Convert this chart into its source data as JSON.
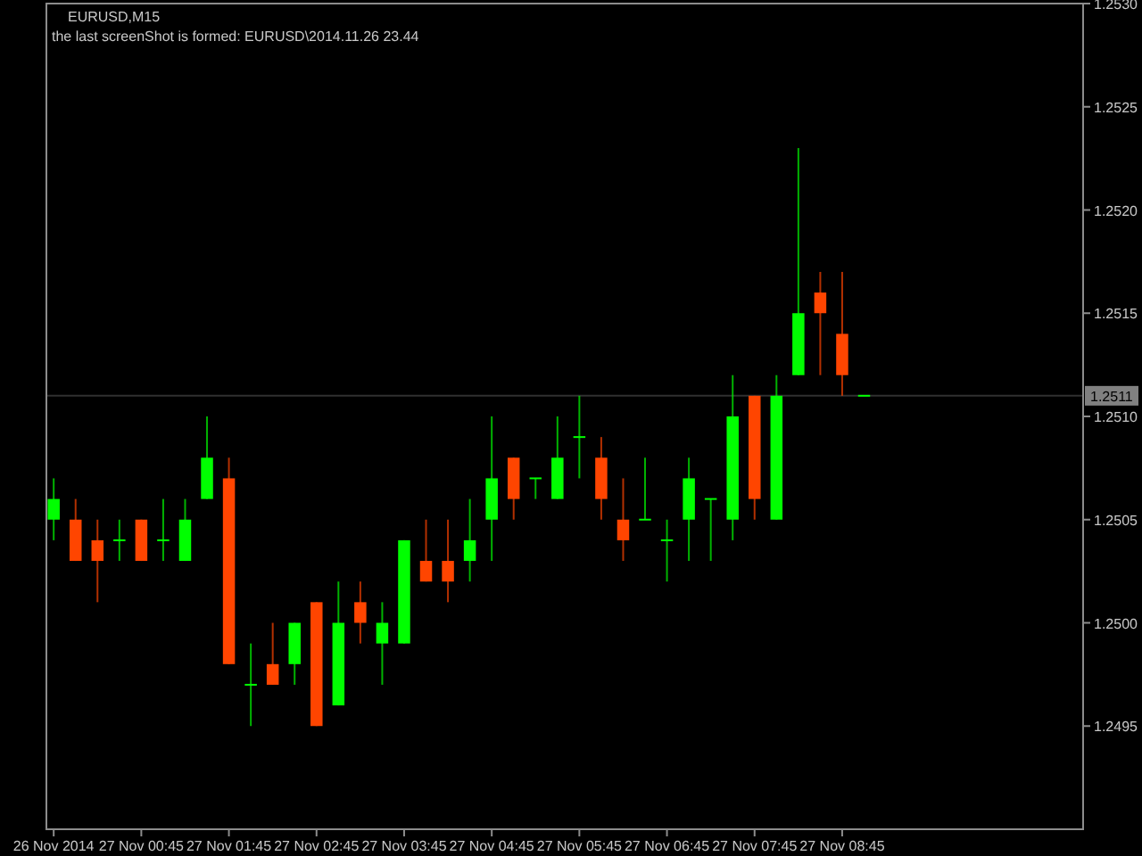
{
  "chart_data": {
    "type": "candlestick",
    "title": "EURUSD,M15",
    "subtitle": "the last screenShot is formed: EURUSD\\2014.11.26 23.44",
    "x": [
      "2014-11-26T23:45",
      "2014-11-27T00:00",
      "2014-11-27T00:15",
      "2014-11-27T00:30",
      "2014-11-27T00:45",
      "2014-11-27T01:00",
      "2014-11-27T01:15",
      "2014-11-27T01:30",
      "2014-11-27T01:45",
      "2014-11-27T02:00",
      "2014-11-27T02:15",
      "2014-11-27T02:30",
      "2014-11-27T02:45",
      "2014-11-27T03:00",
      "2014-11-27T03:15",
      "2014-11-27T03:30",
      "2014-11-27T03:45",
      "2014-11-27T04:00",
      "2014-11-27T04:15",
      "2014-11-27T04:30",
      "2014-11-27T04:45",
      "2014-11-27T05:00",
      "2014-11-27T05:15",
      "2014-11-27T05:30",
      "2014-11-27T05:45",
      "2014-11-27T06:00",
      "2014-11-27T06:15",
      "2014-11-27T06:30",
      "2014-11-27T06:45",
      "2014-11-27T07:00",
      "2014-11-27T07:15",
      "2014-11-27T07:30",
      "2014-11-27T07:45",
      "2014-11-27T08:00",
      "2014-11-27T08:15",
      "2014-11-27T08:30",
      "2014-11-27T08:45",
      "2014-11-27T09:00"
    ],
    "ohlc": [
      [
        1.2505,
        1.2507,
        1.2504,
        1.2506
      ],
      [
        1.2505,
        1.2506,
        1.2503,
        1.2503
      ],
      [
        1.2504,
        1.2505,
        1.2501,
        1.2503
      ],
      [
        1.2504,
        1.2505,
        1.2503,
        1.2504
      ],
      [
        1.2505,
        1.2505,
        1.2503,
        1.2503
      ],
      [
        1.2504,
        1.2506,
        1.2503,
        1.2504
      ],
      [
        1.2503,
        1.2506,
        1.2503,
        1.2505
      ],
      [
        1.2506,
        1.251,
        1.2506,
        1.2508
      ],
      [
        1.2507,
        1.2508,
        1.2498,
        1.2498
      ],
      [
        1.2497,
        1.2499,
        1.2495,
        1.2497
      ],
      [
        1.2498,
        1.25,
        1.2497,
        1.2497
      ],
      [
        1.2498,
        1.25,
        1.2497,
        1.25
      ],
      [
        1.2501,
        1.2501,
        1.2495,
        1.2495
      ],
      [
        1.2496,
        1.2502,
        1.2496,
        1.25
      ],
      [
        1.2501,
        1.2502,
        1.2499,
        1.25
      ],
      [
        1.2499,
        1.2501,
        1.2497,
        1.25
      ],
      [
        1.2499,
        1.2504,
        1.2499,
        1.2504
      ],
      [
        1.2503,
        1.2505,
        1.2502,
        1.2502
      ],
      [
        1.2503,
        1.2505,
        1.2501,
        1.2502
      ],
      [
        1.2503,
        1.2506,
        1.2502,
        1.2504
      ],
      [
        1.2505,
        1.251,
        1.2503,
        1.2507
      ],
      [
        1.2508,
        1.2508,
        1.2505,
        1.2506
      ],
      [
        1.2507,
        1.2507,
        1.2506,
        1.2507
      ],
      [
        1.2506,
        1.251,
        1.2506,
        1.2508
      ],
      [
        1.2509,
        1.2511,
        1.2507,
        1.2509
      ],
      [
        1.2508,
        1.2509,
        1.2505,
        1.2506
      ],
      [
        1.2505,
        1.2507,
        1.2503,
        1.2504
      ],
      [
        1.2505,
        1.2508,
        1.2505,
        1.2505
      ],
      [
        1.2504,
        1.2505,
        1.2502,
        1.2504
      ],
      [
        1.2505,
        1.2508,
        1.2503,
        1.2507
      ],
      [
        1.2506,
        1.2506,
        1.2503,
        1.2506
      ],
      [
        1.2505,
        1.2512,
        1.2504,
        1.251
      ],
      [
        1.2511,
        1.2511,
        1.2505,
        1.2506
      ],
      [
        1.2505,
        1.2512,
        1.2505,
        1.2511
      ],
      [
        1.2512,
        1.2523,
        1.2512,
        1.2515
      ],
      [
        1.2516,
        1.2517,
        1.2512,
        1.2515
      ],
      [
        1.2514,
        1.2517,
        1.2511,
        1.2512
      ],
      [
        1.2511,
        1.2511,
        1.2511,
        1.2511
      ]
    ],
    "colors": [
      "#00ff00",
      "#ff4500",
      "#ff4500",
      "#00ff00",
      "#ff4500",
      "#00ff00",
      "#00ff00",
      "#00ff00",
      "#ff4500",
      "#00ff00",
      "#ff4500",
      "#00ff00",
      "#ff4500",
      "#00ff00",
      "#ff4500",
      "#00ff00",
      "#00ff00",
      "#ff4500",
      "#ff4500",
      "#00ff00",
      "#00ff00",
      "#ff4500",
      "#00ff00",
      "#00ff00",
      "#00ff00",
      "#ff4500",
      "#ff4500",
      "#00ff00",
      "#00ff00",
      "#00ff00",
      "#00ff00",
      "#00ff00",
      "#ff4500",
      "#00ff00",
      "#00ff00",
      "#ff4500",
      "#ff4500",
      "#00ff00"
    ],
    "xlim": [
      "2014-11-26T23:40",
      "2014-11-27T11:30"
    ],
    "xticks": [
      {
        "value": "2014-11-26T23:45",
        "label": "26 Nov 2014"
      },
      {
        "value": "2014-11-27T00:45",
        "label": "27 Nov 00:45"
      },
      {
        "value": "2014-11-27T01:45",
        "label": "27 Nov 01:45"
      },
      {
        "value": "2014-11-27T02:45",
        "label": "27 Nov 02:45"
      },
      {
        "value": "2014-11-27T03:45",
        "label": "27 Nov 03:45"
      },
      {
        "value": "2014-11-27T04:45",
        "label": "27 Nov 04:45"
      },
      {
        "value": "2014-11-27T05:45",
        "label": "27 Nov 05:45"
      },
      {
        "value": "2014-11-27T06:45",
        "label": "27 Nov 06:45"
      },
      {
        "value": "2014-11-27T07:45",
        "label": "27 Nov 07:45"
      },
      {
        "value": "2014-11-27T08:45",
        "label": "27 Nov 08:45"
      }
    ],
    "ylim": [
      1.249,
      1.253
    ],
    "yticks": [
      {
        "value": 1.2495,
        "label": "1.2495"
      },
      {
        "value": 1.25,
        "label": "1.2500"
      },
      {
        "value": 1.2505,
        "label": "1.2505"
      },
      {
        "value": 1.251,
        "label": "1.2510"
      },
      {
        "value": 1.2515,
        "label": "1.2515"
      },
      {
        "value": 1.252,
        "label": "1.2520"
      },
      {
        "value": 1.2525,
        "label": "1.2525"
      },
      {
        "value": 1.253,
        "label": "1.2530"
      }
    ],
    "ref_lines": [
      {
        "axis": "y",
        "value": 1.2511,
        "label": "1.2511",
        "color": "#303030"
      }
    ]
  }
}
